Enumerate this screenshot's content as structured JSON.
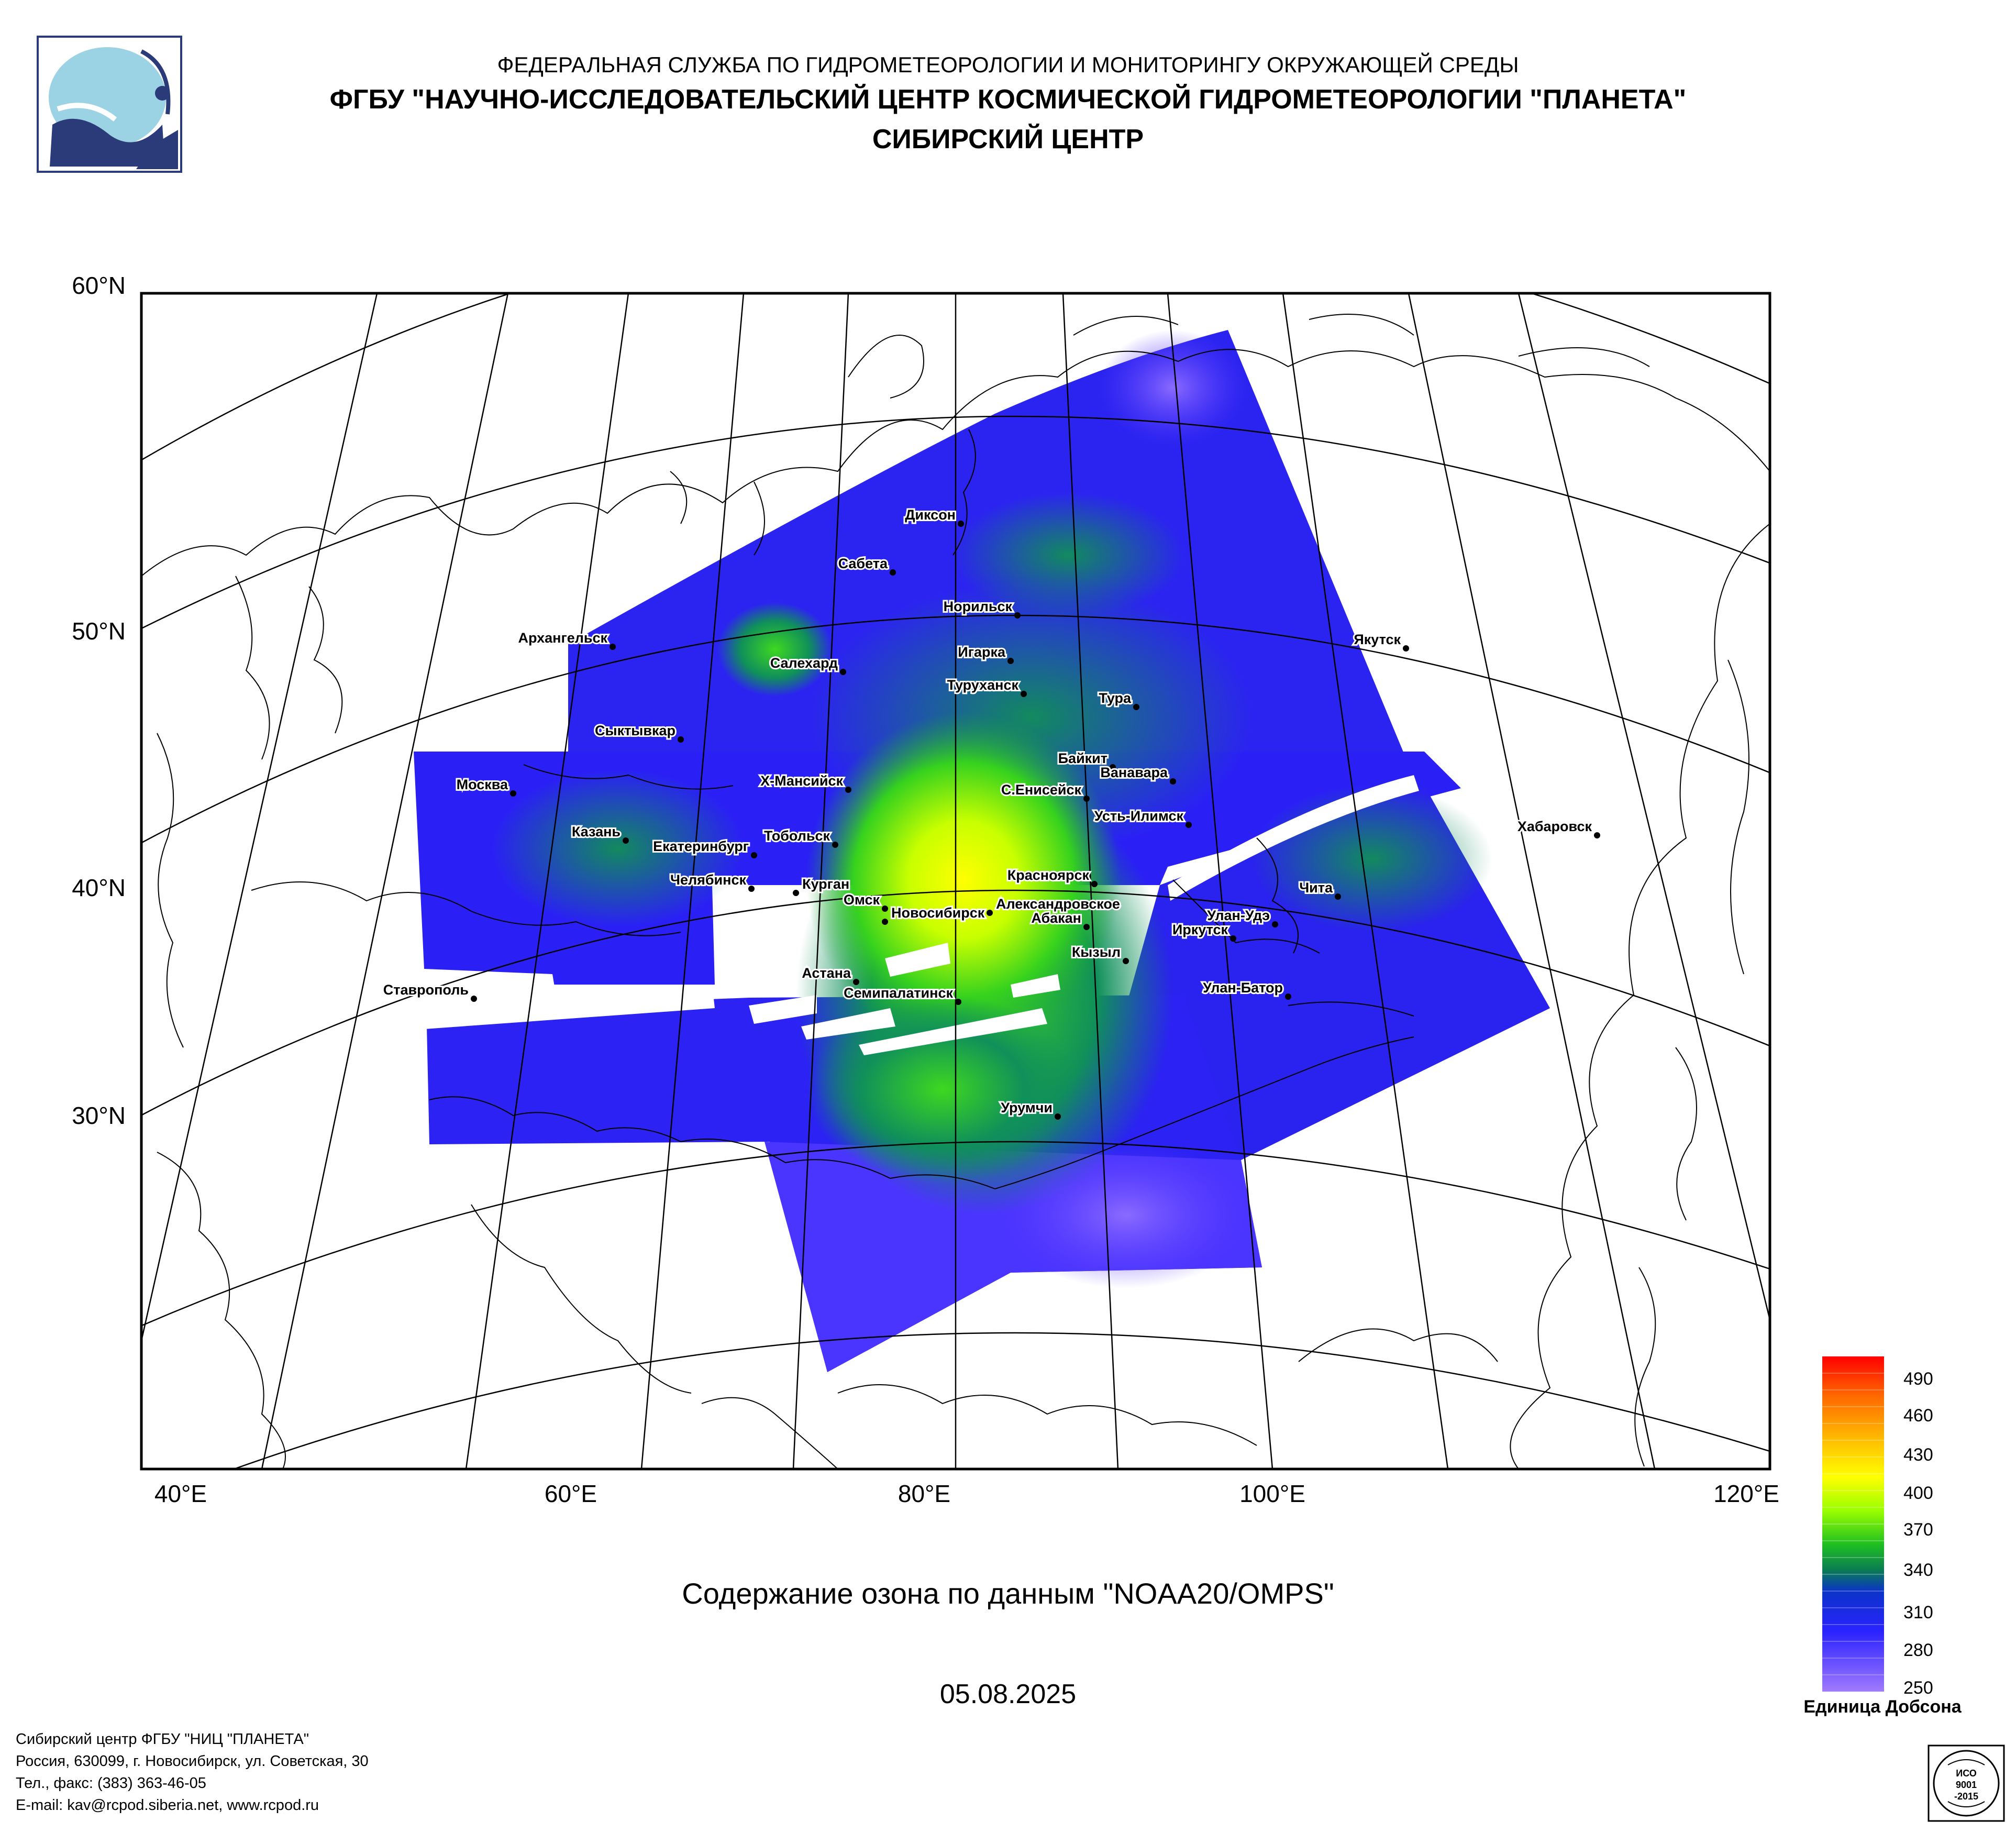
{
  "header": {
    "line1": "ФЕДЕРАЛЬНАЯ СЛУЖБА ПО ГИДРОМЕТЕОРОЛОГИИ И МОНИТОРИНГУ ОКРУЖАЮЩЕЙ СРЕДЫ",
    "line2": "ФГБУ \"НАУЧНО-ИССЛЕДОВАТЕЛЬСКИЙ ЦЕНТР КОСМИЧЕСКОЙ ГИДРОМЕТЕОРОЛОГИИ \"ПЛАНЕТА\"",
    "line3": "СИБИРСКИЙ ЦЕНТР"
  },
  "map": {
    "title": "Содержание озона по данным \"NOAA20/OMPS\"",
    "date": "05.08.2025",
    "lat_labels": [
      "60°N",
      "50°N",
      "40°N",
      "30°N"
    ],
    "lon_labels": [
      "40°E",
      "60°E",
      "80°E",
      "100°E",
      "120°E"
    ],
    "colors": {
      "low": "#9b6bff",
      "mid_low": "#2a1bff",
      "mid": "#1aa33a",
      "mid_high": "#7dff00",
      "high": "#ffff00",
      "top": "#ff0000"
    },
    "cities": [
      {
        "name": "Диксон"
      },
      {
        "name": "Сабета"
      },
      {
        "name": "Норильск"
      },
      {
        "name": "Архангельск"
      },
      {
        "name": "Салехард"
      },
      {
        "name": "Игарка"
      },
      {
        "name": "Туруханск"
      },
      {
        "name": "Якутск"
      },
      {
        "name": "Тура"
      },
      {
        "name": "Сыктывкар"
      },
      {
        "name": "Байкит"
      },
      {
        "name": "Ванавара"
      },
      {
        "name": "Москва"
      },
      {
        "name": "Х-Мансийск"
      },
      {
        "name": "С.Енисейск"
      },
      {
        "name": "Усть-Илимск"
      },
      {
        "name": "Казань"
      },
      {
        "name": "Тобольск"
      },
      {
        "name": "Екатеринбург"
      },
      {
        "name": "Хабаровск"
      },
      {
        "name": "Челябинск"
      },
      {
        "name": "Красноярск"
      },
      {
        "name": "Курган"
      },
      {
        "name": "Александровское"
      },
      {
        "name": "Омск"
      },
      {
        "name": "Новосибирск"
      },
      {
        "name": "Абакан"
      },
      {
        "name": "Чита"
      },
      {
        "name": "Улан-Удэ"
      },
      {
        "name": "Иркутск"
      },
      {
        "name": "Кызыл"
      },
      {
        "name": "Астана"
      },
      {
        "name": "Ставрополь"
      },
      {
        "name": "Семипалатинск"
      },
      {
        "name": "Улан-Батор"
      },
      {
        "name": "Урумчи"
      }
    ]
  },
  "legend": {
    "unit": "Единица Добсона",
    "ticks": [
      "490",
      "460",
      "430",
      "400",
      "370",
      "340",
      "310",
      "280",
      "250"
    ]
  },
  "footer": {
    "line1": "Сибирский центр ФГБУ \"НИЦ \"ПЛАНЕТА\"",
    "line2": "Россия, 630099, г. Новосибирск, ул. Советская, 30",
    "line3": "Тел., факс: (383) 363-46-05",
    "line4": "E-mail: kav@rcpod.siberia.net, www.rcpod.ru"
  },
  "badge": {
    "text1": "ИСО",
    "text2": "9001",
    "text3": "-2015"
  }
}
